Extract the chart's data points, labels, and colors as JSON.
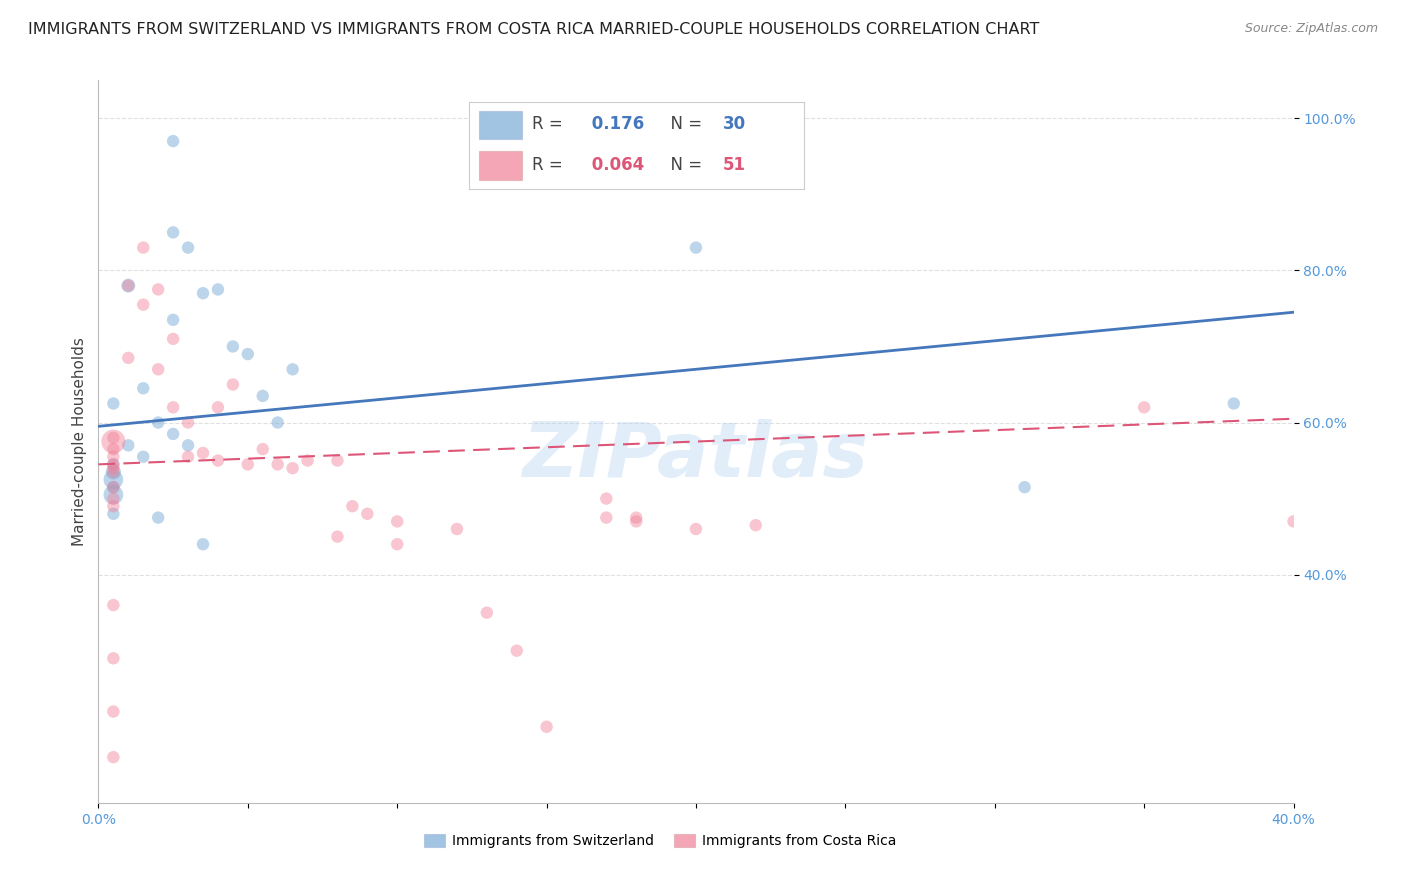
{
  "title": "IMMIGRANTS FROM SWITZERLAND VS IMMIGRANTS FROM COSTA RICA MARRIED-COUPLE HOUSEHOLDS CORRELATION CHART",
  "source": "Source: ZipAtlas.com",
  "ylabel": "Married-couple Households",
  "xlim": [
    0.0,
    0.4
  ],
  "ylim": [
    0.1,
    1.05
  ],
  "yticks": [
    0.4,
    0.6,
    0.8,
    1.0
  ],
  "ytick_labels": [
    "40.0%",
    "60.0%",
    "80.0%",
    "100.0%"
  ],
  "xticks": [
    0.0,
    0.05,
    0.1,
    0.15,
    0.2,
    0.25,
    0.3,
    0.35,
    0.4
  ],
  "xtick_labels": [
    "0.0%",
    "",
    "",
    "",
    "",
    "",
    "",
    "",
    "40.0%"
  ],
  "blue_R": 0.176,
  "blue_N": 30,
  "pink_R": 0.064,
  "pink_N": 51,
  "blue_color": "#7aacd6",
  "pink_color": "#f08098",
  "blue_line_color": "#4477bb",
  "pink_line_color": "#dd5577",
  "axis_color": "#5599dd",
  "grid_color": "#dddddd",
  "background_color": "#ffffff",
  "blue_scatter_x": [
    0.025,
    0.025,
    0.03,
    0.035,
    0.04,
    0.045,
    0.05,
    0.055,
    0.06,
    0.065,
    0.01,
    0.015,
    0.02,
    0.025,
    0.03,
    0.01,
    0.015,
    0.005,
    0.005,
    0.005,
    0.005,
    0.005,
    0.005,
    0.2,
    0.31,
    0.02,
    0.035,
    0.025,
    0.38,
    0.005
  ],
  "blue_scatter_y": [
    0.97,
    0.85,
    0.83,
    0.77,
    0.775,
    0.7,
    0.69,
    0.635,
    0.6,
    0.67,
    0.78,
    0.645,
    0.6,
    0.585,
    0.57,
    0.57,
    0.555,
    0.545,
    0.535,
    0.525,
    0.515,
    0.505,
    0.48,
    0.83,
    0.515,
    0.475,
    0.44,
    0.735,
    0.625,
    0.625
  ],
  "blue_scatter_size": [
    80,
    80,
    80,
    80,
    80,
    80,
    80,
    80,
    80,
    80,
    100,
    80,
    80,
    80,
    80,
    80,
    80,
    80,
    120,
    200,
    80,
    200,
    80,
    80,
    80,
    80,
    80,
    80,
    80,
    80
  ],
  "pink_scatter_x": [
    0.005,
    0.005,
    0.005,
    0.005,
    0.005,
    0.005,
    0.005,
    0.005,
    0.01,
    0.01,
    0.015,
    0.015,
    0.02,
    0.02,
    0.025,
    0.025,
    0.03,
    0.03,
    0.035,
    0.04,
    0.04,
    0.045,
    0.05,
    0.055,
    0.06,
    0.065,
    0.07,
    0.08,
    0.08,
    0.085,
    0.09,
    0.1,
    0.1,
    0.12,
    0.13,
    0.14,
    0.15,
    0.17,
    0.17,
    0.18,
    0.18,
    0.2,
    0.22,
    0.35,
    0.4,
    0.005,
    0.005,
    0.005,
    0.005,
    0.005,
    0.005
  ],
  "pink_scatter_y": [
    0.575,
    0.565,
    0.555,
    0.545,
    0.54,
    0.535,
    0.5,
    0.49,
    0.78,
    0.685,
    0.83,
    0.755,
    0.775,
    0.67,
    0.71,
    0.62,
    0.6,
    0.555,
    0.56,
    0.62,
    0.55,
    0.65,
    0.545,
    0.565,
    0.545,
    0.54,
    0.55,
    0.55,
    0.45,
    0.49,
    0.48,
    0.47,
    0.44,
    0.46,
    0.35,
    0.3,
    0.2,
    0.5,
    0.475,
    0.475,
    0.47,
    0.46,
    0.465,
    0.62,
    0.47,
    0.36,
    0.29,
    0.22,
    0.16,
    0.58,
    0.515
  ],
  "pink_scatter_size": [
    300,
    80,
    80,
    80,
    80,
    80,
    80,
    80,
    80,
    80,
    80,
    80,
    80,
    80,
    80,
    80,
    80,
    80,
    80,
    80,
    80,
    80,
    80,
    80,
    80,
    80,
    80,
    80,
    80,
    80,
    80,
    80,
    80,
    80,
    80,
    80,
    80,
    80,
    80,
    80,
    80,
    80,
    80,
    80,
    80,
    80,
    80,
    80,
    80,
    80,
    80
  ],
  "blue_line_x": [
    0.0,
    0.4
  ],
  "blue_line_y": [
    0.595,
    0.745
  ],
  "pink_line_x": [
    0.0,
    0.4
  ],
  "pink_line_y": [
    0.545,
    0.605
  ],
  "watermark": "ZIPatlas",
  "title_fontsize": 11.5,
  "axis_label_fontsize": 11,
  "tick_fontsize": 10,
  "legend_fontsize": 12
}
